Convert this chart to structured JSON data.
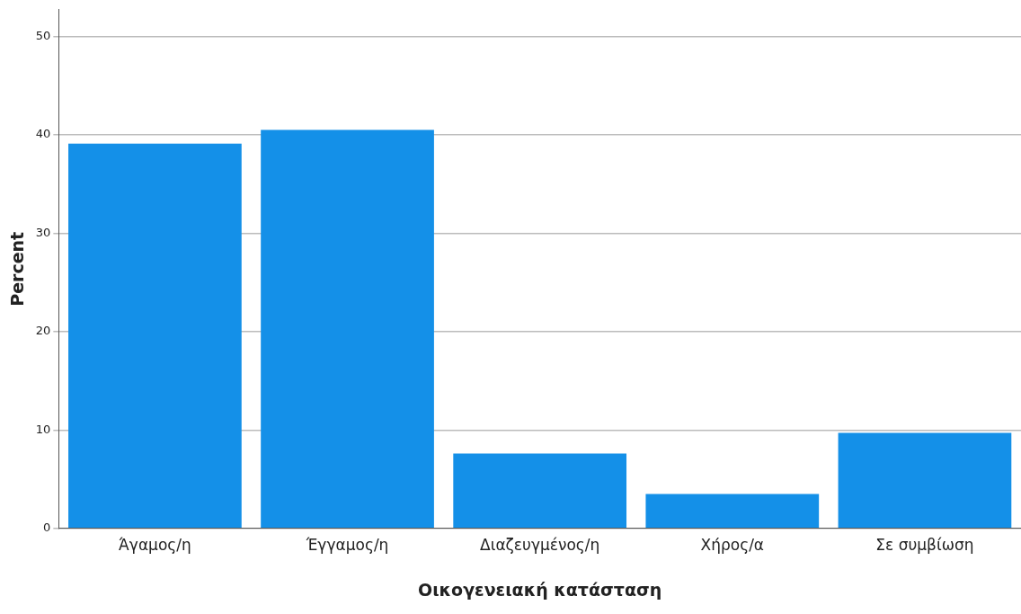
{
  "chart_data": {
    "type": "bar",
    "xlabel": "Οικογενειακή κατάσταση",
    "ylabel": "Percent",
    "categories": [
      "Άγαμος/η",
      "Έγγαμος/η",
      "Διαζευγμένος/η",
      "Χήρος/α",
      "Σε συμβίωση"
    ],
    "values": [
      39.1,
      40.5,
      7.6,
      3.5,
      9.7
    ],
    "color": "#1490e8",
    "ylim": [
      0,
      52.7
    ],
    "yticks": [
      0,
      10,
      20,
      30,
      40,
      50
    ],
    "grid": "y"
  }
}
